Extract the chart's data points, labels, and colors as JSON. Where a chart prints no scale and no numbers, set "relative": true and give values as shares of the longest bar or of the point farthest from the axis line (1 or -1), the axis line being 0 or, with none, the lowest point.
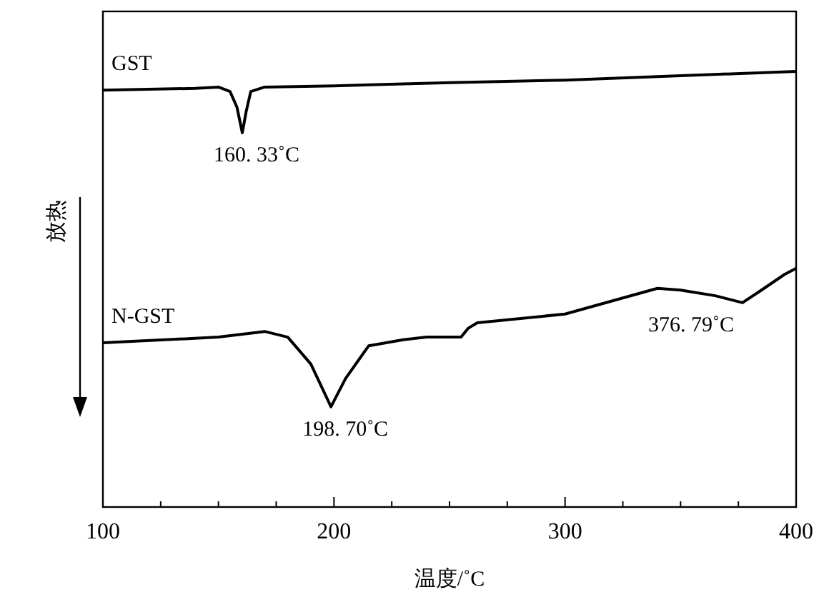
{
  "chart_data": {
    "type": "line",
    "relative": true,
    "ylabel": "放热",
    "xlabel": "温度/˚C",
    "xlim": [
      100,
      400
    ],
    "xticks": [
      100,
      {
        "value": 125,
        "label": null
      },
      {
        "value": 150,
        "label": null
      },
      {
        "value": 175,
        "label": null
      },
      200,
      {
        "value": 225,
        "label": null
      },
      {
        "value": 250,
        "label": null
      },
      {
        "value": 275,
        "label": null
      },
      300,
      {
        "value": 325,
        "label": null
      },
      {
        "value": 350,
        "label": null
      },
      {
        "value": 375,
        "label": null
      },
      400
    ],
    "grid": false,
    "marker": "none",
    "line_style": "solid",
    "series": [
      {
        "name": "GST",
        "color": "#000000",
        "x": [
          100,
          140,
          150,
          155,
          158,
          160.33,
          162,
          164,
          170,
          200,
          250,
          300,
          350,
          400
        ],
        "values": [
          0.957,
          0.961,
          0.964,
          0.954,
          0.918,
          0.859,
          0.908,
          0.954,
          0.964,
          0.967,
          0.974,
          0.98,
          0.99,
          1
        ]
      },
      {
        "name": "N-GST",
        "color": "#000000",
        "x": [
          100,
          150,
          170,
          180,
          190,
          198.7,
          205,
          215,
          230,
          240,
          255,
          258,
          262,
          300,
          340,
          350,
          365,
          376.79,
          385,
          395,
          400
        ],
        "values": [
          0.377,
          0.39,
          0.403,
          0.39,
          0.328,
          0.23,
          0.295,
          0.37,
          0.384,
          0.39,
          0.39,
          0.41,
          0.423,
          0.443,
          0.502,
          0.498,
          0.485,
          0.469,
          0.498,
          0.534,
          0.548
        ]
      }
    ],
    "annotations": [
      {
        "text": "160. 33˚C",
        "x": 160.33,
        "y": 0.859
      },
      {
        "text": "198. 70˚C",
        "x": 198.7,
        "y": 0.23
      },
      {
        "text": "376. 79˚C",
        "x": 376.79,
        "y": 0.469
      }
    ]
  }
}
